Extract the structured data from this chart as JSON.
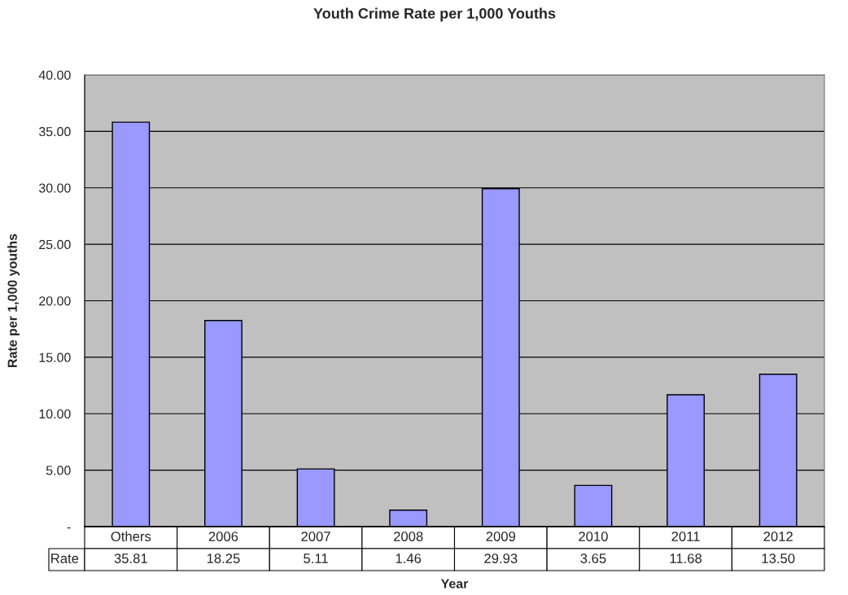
{
  "chart_data": {
    "type": "bar",
    "title": "Youth Crime Rate per 1,000 Youths",
    "xlabel": "Year",
    "ylabel": "Rate per 1,000 youths",
    "categories": [
      "Others",
      "2006",
      "2007",
      "2008",
      "2009",
      "2010",
      "2011",
      "2012"
    ],
    "series": [
      {
        "name": "Rate",
        "color": "#9999ff",
        "values": [
          35.81,
          18.25,
          5.11,
          1.46,
          29.93,
          3.65,
          11.68,
          13.5
        ],
        "value_labels": [
          "35.81",
          "18.25",
          "5.11",
          "1.46",
          "29.93",
          "3.65",
          "11.68",
          "13.50"
        ]
      }
    ],
    "ylim": [
      0,
      40
    ],
    "yticks": [
      {
        "value": 0,
        "label": "-"
      },
      {
        "value": 5,
        "label": "5.00"
      },
      {
        "value": 10,
        "label": "10.00"
      },
      {
        "value": 15,
        "label": "15.00"
      },
      {
        "value": 20,
        "label": "20.00"
      },
      {
        "value": 25,
        "label": "25.00"
      },
      {
        "value": 30,
        "label": "30.00"
      },
      {
        "value": 35,
        "label": "35.00"
      },
      {
        "value": 40,
        "label": "40.00"
      }
    ],
    "grid": "y"
  }
}
